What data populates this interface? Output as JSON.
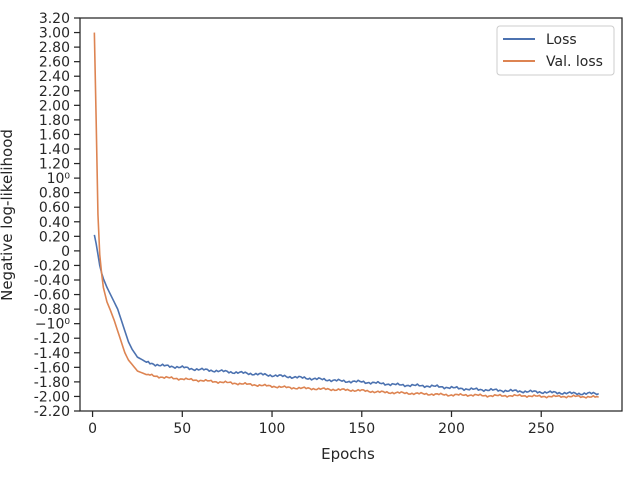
{
  "chart_data": {
    "type": "line",
    "xlabel": "Epochs",
    "ylabel": "Negative log-likelihood",
    "xlim": [
      -7,
      295
    ],
    "ylim": [
      -2.2,
      3.2
    ],
    "yscale": "symlog",
    "grid": false,
    "legend_position": "top-right",
    "x_ticks": [
      0,
      50,
      100,
      150,
      200,
      250
    ],
    "x_tick_labels": [
      "0",
      "50",
      "100",
      "150",
      "200",
      "250"
    ],
    "y_ticks": [
      3.2,
      3.0,
      2.8,
      2.6,
      2.4,
      2.2,
      2.0,
      1.8,
      1.6,
      1.4,
      1.2,
      1.0,
      0.8,
      0.6,
      0.4,
      0.2,
      0,
      -0.2,
      -0.4,
      -0.6,
      -0.8,
      -1.0,
      -1.2,
      -1.4,
      -1.6,
      -1.8,
      -2.0,
      -2.2
    ],
    "y_tick_labels": [
      "3.20",
      "3.00",
      "2.80",
      "2.60",
      "2.40",
      "2.20",
      "2.00",
      "1.80",
      "1.60",
      "1.40",
      "1.20",
      "10⁰",
      "0.80",
      "0.60",
      "0.40",
      "0.20",
      "0",
      "-0.20",
      "-0.40",
      "-0.60",
      "-0.80",
      "−10⁰",
      "-1.20",
      "-1.40",
      "-1.60",
      "-1.80",
      "-2.00",
      "-2.20"
    ],
    "series": [
      {
        "name": "Loss",
        "color": "#4c72b0",
        "x": [
          1,
          2,
          3,
          4,
          5,
          6,
          8,
          10,
          12,
          14,
          16,
          18,
          20,
          22,
          25,
          28,
          30,
          35,
          40,
          45,
          50,
          55,
          60,
          65,
          70,
          75,
          80,
          90,
          100,
          110,
          120,
          130,
          140,
          150,
          160,
          170,
          180,
          190,
          200,
          210,
          220,
          230,
          240,
          250,
          260,
          270,
          282
        ],
        "y": [
          0.22,
          0.1,
          -0.05,
          -0.2,
          -0.3,
          -0.38,
          -0.5,
          -0.6,
          -0.7,
          -0.8,
          -0.95,
          -1.1,
          -1.25,
          -1.35,
          -1.46,
          -1.5,
          -1.53,
          -1.56,
          -1.58,
          -1.59,
          -1.6,
          -1.62,
          -1.63,
          -1.64,
          -1.65,
          -1.66,
          -1.67,
          -1.69,
          -1.71,
          -1.73,
          -1.75,
          -1.77,
          -1.79,
          -1.8,
          -1.82,
          -1.84,
          -1.85,
          -1.86,
          -1.88,
          -1.9,
          -1.91,
          -1.92,
          -1.93,
          -1.94,
          -1.95,
          -1.96,
          -1.96
        ]
      },
      {
        "name": "Val. loss",
        "color": "#dd8452",
        "x": [
          1,
          2,
          3,
          4,
          5,
          6,
          8,
          10,
          12,
          14,
          16,
          18,
          20,
          22,
          25,
          28,
          30,
          35,
          40,
          45,
          50,
          55,
          60,
          65,
          70,
          75,
          80,
          90,
          100,
          110,
          120,
          130,
          140,
          150,
          160,
          170,
          180,
          190,
          200,
          210,
          220,
          230,
          240,
          250,
          260,
          270,
          282
        ],
        "y": [
          3.0,
          1.8,
          0.5,
          -0.05,
          -0.3,
          -0.5,
          -0.7,
          -0.82,
          -0.95,
          -1.1,
          -1.25,
          -1.4,
          -1.5,
          -1.56,
          -1.65,
          -1.68,
          -1.7,
          -1.72,
          -1.74,
          -1.75,
          -1.76,
          -1.77,
          -1.78,
          -1.79,
          -1.8,
          -1.81,
          -1.82,
          -1.84,
          -1.86,
          -1.88,
          -1.89,
          -1.9,
          -1.91,
          -1.92,
          -1.94,
          -1.95,
          -1.96,
          -1.97,
          -1.98,
          -1.98,
          -1.99,
          -1.99,
          -1.99,
          -2.0,
          -2.0,
          -2.0,
          -2.01
        ]
      }
    ]
  }
}
